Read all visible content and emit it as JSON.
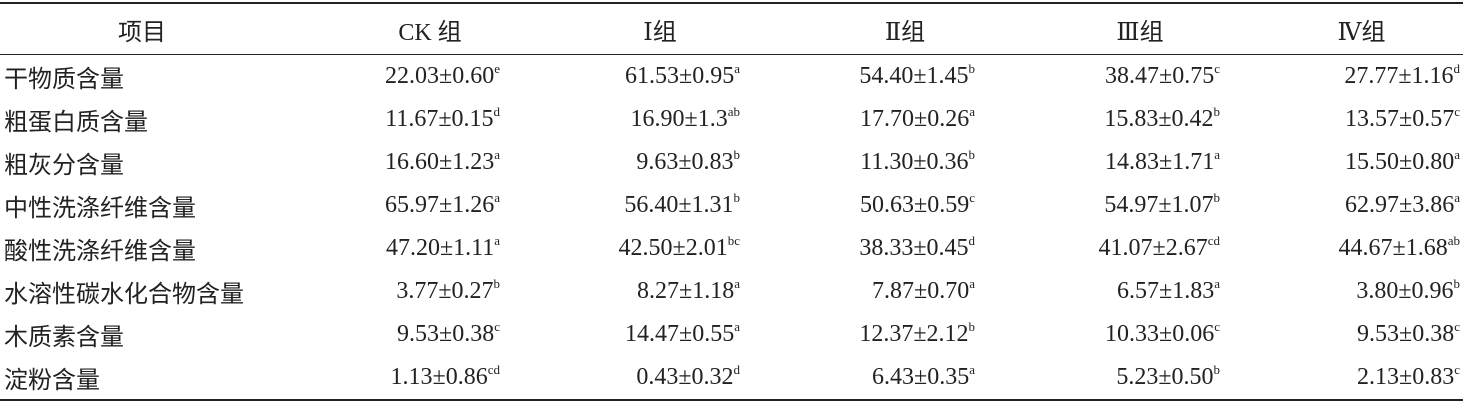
{
  "table": {
    "header": [
      "项目",
      "CK 组",
      "Ⅰ组",
      "Ⅱ组",
      "Ⅲ组",
      "Ⅳ组"
    ],
    "rows": [
      [
        "干物质含量",
        {
          "value": "22.03±0.60",
          "sup": "e"
        },
        {
          "value": "61.53±0.95",
          "sup": "a"
        },
        {
          "value": "54.40±1.45",
          "sup": "b"
        },
        {
          "value": "38.47±0.75",
          "sup": "c"
        },
        {
          "value": "27.77±1.16",
          "sup": "d"
        }
      ],
      [
        "粗蛋白质含量",
        {
          "value": "11.67±0.15",
          "sup": "d"
        },
        {
          "value": "16.90±1.3",
          "sup": "ab"
        },
        {
          "value": "17.70±0.26",
          "sup": "a"
        },
        {
          "value": "15.83±0.42",
          "sup": "b"
        },
        {
          "value": "13.57±0.57",
          "sup": "c"
        }
      ],
      [
        "粗灰分含量",
        {
          "value": "16.60±1.23",
          "sup": "a"
        },
        {
          "value": "9.63±0.83",
          "sup": "b"
        },
        {
          "value": "11.30±0.36",
          "sup": "b"
        },
        {
          "value": "14.83±1.71",
          "sup": "a"
        },
        {
          "value": "15.50±0.80",
          "sup": "a"
        }
      ],
      [
        "中性洗涤纤维含量",
        {
          "value": "65.97±1.26",
          "sup": "a"
        },
        {
          "value": "56.40±1.31",
          "sup": "b"
        },
        {
          "value": "50.63±0.59",
          "sup": "c"
        },
        {
          "value": "54.97±1.07",
          "sup": "b"
        },
        {
          "value": "62.97±3.86",
          "sup": "a"
        }
      ],
      [
        "酸性洗涤纤维含量",
        {
          "value": "47.20±1.11",
          "sup": "a"
        },
        {
          "value": "42.50±2.01",
          "sup": "bc"
        },
        {
          "value": "38.33±0.45",
          "sup": "d"
        },
        {
          "value": "41.07±2.67",
          "sup": "cd"
        },
        {
          "value": "44.67±1.68",
          "sup": "ab"
        }
      ],
      [
        "水溶性碳水化合物含量",
        {
          "value": "3.77±0.27",
          "sup": "b"
        },
        {
          "value": "8.27±1.18",
          "sup": "a"
        },
        {
          "value": "7.87±0.70",
          "sup": "a"
        },
        {
          "value": "6.57±1.83",
          "sup": "a"
        },
        {
          "value": "3.80±0.96",
          "sup": "b"
        }
      ],
      [
        "木质素含量",
        {
          "value": "9.53±0.38",
          "sup": "c"
        },
        {
          "value": "14.47±0.55",
          "sup": "a"
        },
        {
          "value": "12.37±2.12",
          "sup": "b"
        },
        {
          "value": "10.33±0.06",
          "sup": "c"
        },
        {
          "value": "9.53±0.38",
          "sup": "c"
        }
      ],
      [
        "淀粉含量",
        {
          "value": "1.13±0.86",
          "sup": "cd"
        },
        {
          "value": "0.43±0.32",
          "sup": "d"
        },
        {
          "value": "6.43±0.35",
          "sup": "a"
        },
        {
          "value": "5.23±0.50",
          "sup": "b"
        },
        {
          "value": "2.13±0.83",
          "sup": "c"
        }
      ]
    ]
  }
}
